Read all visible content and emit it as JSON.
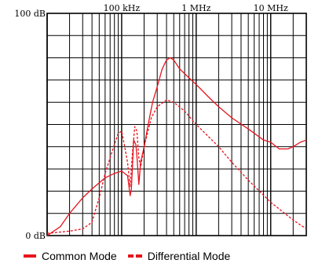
{
  "chart_data": {
    "type": "line",
    "xscale": "log",
    "x_range_hz": [
      10000,
      30000000
    ],
    "ylim_db": [
      0,
      100
    ],
    "x_tick_labels": [
      {
        "x_hz": 100000,
        "label": "100 kHz"
      },
      {
        "x_hz": 1000000,
        "label": "1 MHz"
      },
      {
        "x_hz": 10000000,
        "label": "10 MHz"
      }
    ],
    "y_tick_labels": [
      {
        "y_db": 100,
        "label": "100 dB"
      },
      {
        "y_db": 0,
        "label": "0 dB"
      }
    ],
    "grid": true,
    "series": [
      {
        "name": "Common Mode",
        "style": "solid",
        "color": "#e8141d",
        "points": [
          [
            10000,
            0
          ],
          [
            15000,
            4
          ],
          [
            20000,
            10
          ],
          [
            30000,
            17
          ],
          [
            40000,
            21
          ],
          [
            60000,
            26
          ],
          [
            80000,
            28
          ],
          [
            100000,
            29
          ],
          [
            120000,
            27
          ],
          [
            130000,
            18
          ],
          [
            135000,
            21
          ],
          [
            145000,
            43
          ],
          [
            155000,
            41
          ],
          [
            160000,
            36
          ],
          [
            170000,
            23
          ],
          [
            180000,
            33
          ],
          [
            200000,
            40
          ],
          [
            230000,
            51
          ],
          [
            260000,
            60
          ],
          [
            300000,
            67
          ],
          [
            350000,
            75
          ],
          [
            400000,
            79
          ],
          [
            450000,
            80
          ],
          [
            500000,
            79
          ],
          [
            600000,
            75
          ],
          [
            800000,
            71
          ],
          [
            1000000,
            68
          ],
          [
            1500000,
            62
          ],
          [
            2000000,
            58
          ],
          [
            3000000,
            53
          ],
          [
            5000000,
            48
          ],
          [
            8000000,
            43
          ],
          [
            10000000,
            42
          ],
          [
            13000000,
            39
          ],
          [
            17000000,
            39
          ],
          [
            20000000,
            40
          ],
          [
            25000000,
            42
          ],
          [
            30000000,
            43
          ]
        ]
      },
      {
        "name": "Differential Mode",
        "style": "dashed",
        "color": "#e8141d",
        "points": [
          [
            10000,
            1
          ],
          [
            20000,
            2
          ],
          [
            30000,
            3
          ],
          [
            40000,
            6
          ],
          [
            50000,
            17
          ],
          [
            60000,
            28
          ],
          [
            70000,
            35
          ],
          [
            80000,
            41
          ],
          [
            90000,
            46
          ],
          [
            100000,
            47
          ],
          [
            110000,
            40
          ],
          [
            120000,
            33
          ],
          [
            130000,
            22
          ],
          [
            140000,
            38
          ],
          [
            150000,
            49
          ],
          [
            160000,
            47
          ],
          [
            170000,
            35
          ],
          [
            180000,
            31
          ],
          [
            200000,
            40
          ],
          [
            250000,
            53
          ],
          [
            300000,
            58
          ],
          [
            400000,
            61
          ],
          [
            500000,
            60
          ],
          [
            700000,
            56
          ],
          [
            1000000,
            50
          ],
          [
            2000000,
            40
          ],
          [
            3000000,
            33
          ],
          [
            5000000,
            25
          ],
          [
            10000000,
            15
          ],
          [
            20000000,
            7
          ],
          [
            30000000,
            3
          ]
        ]
      }
    ]
  },
  "legend": {
    "common_label": "Common Mode",
    "differential_label": "Differential Mode"
  }
}
